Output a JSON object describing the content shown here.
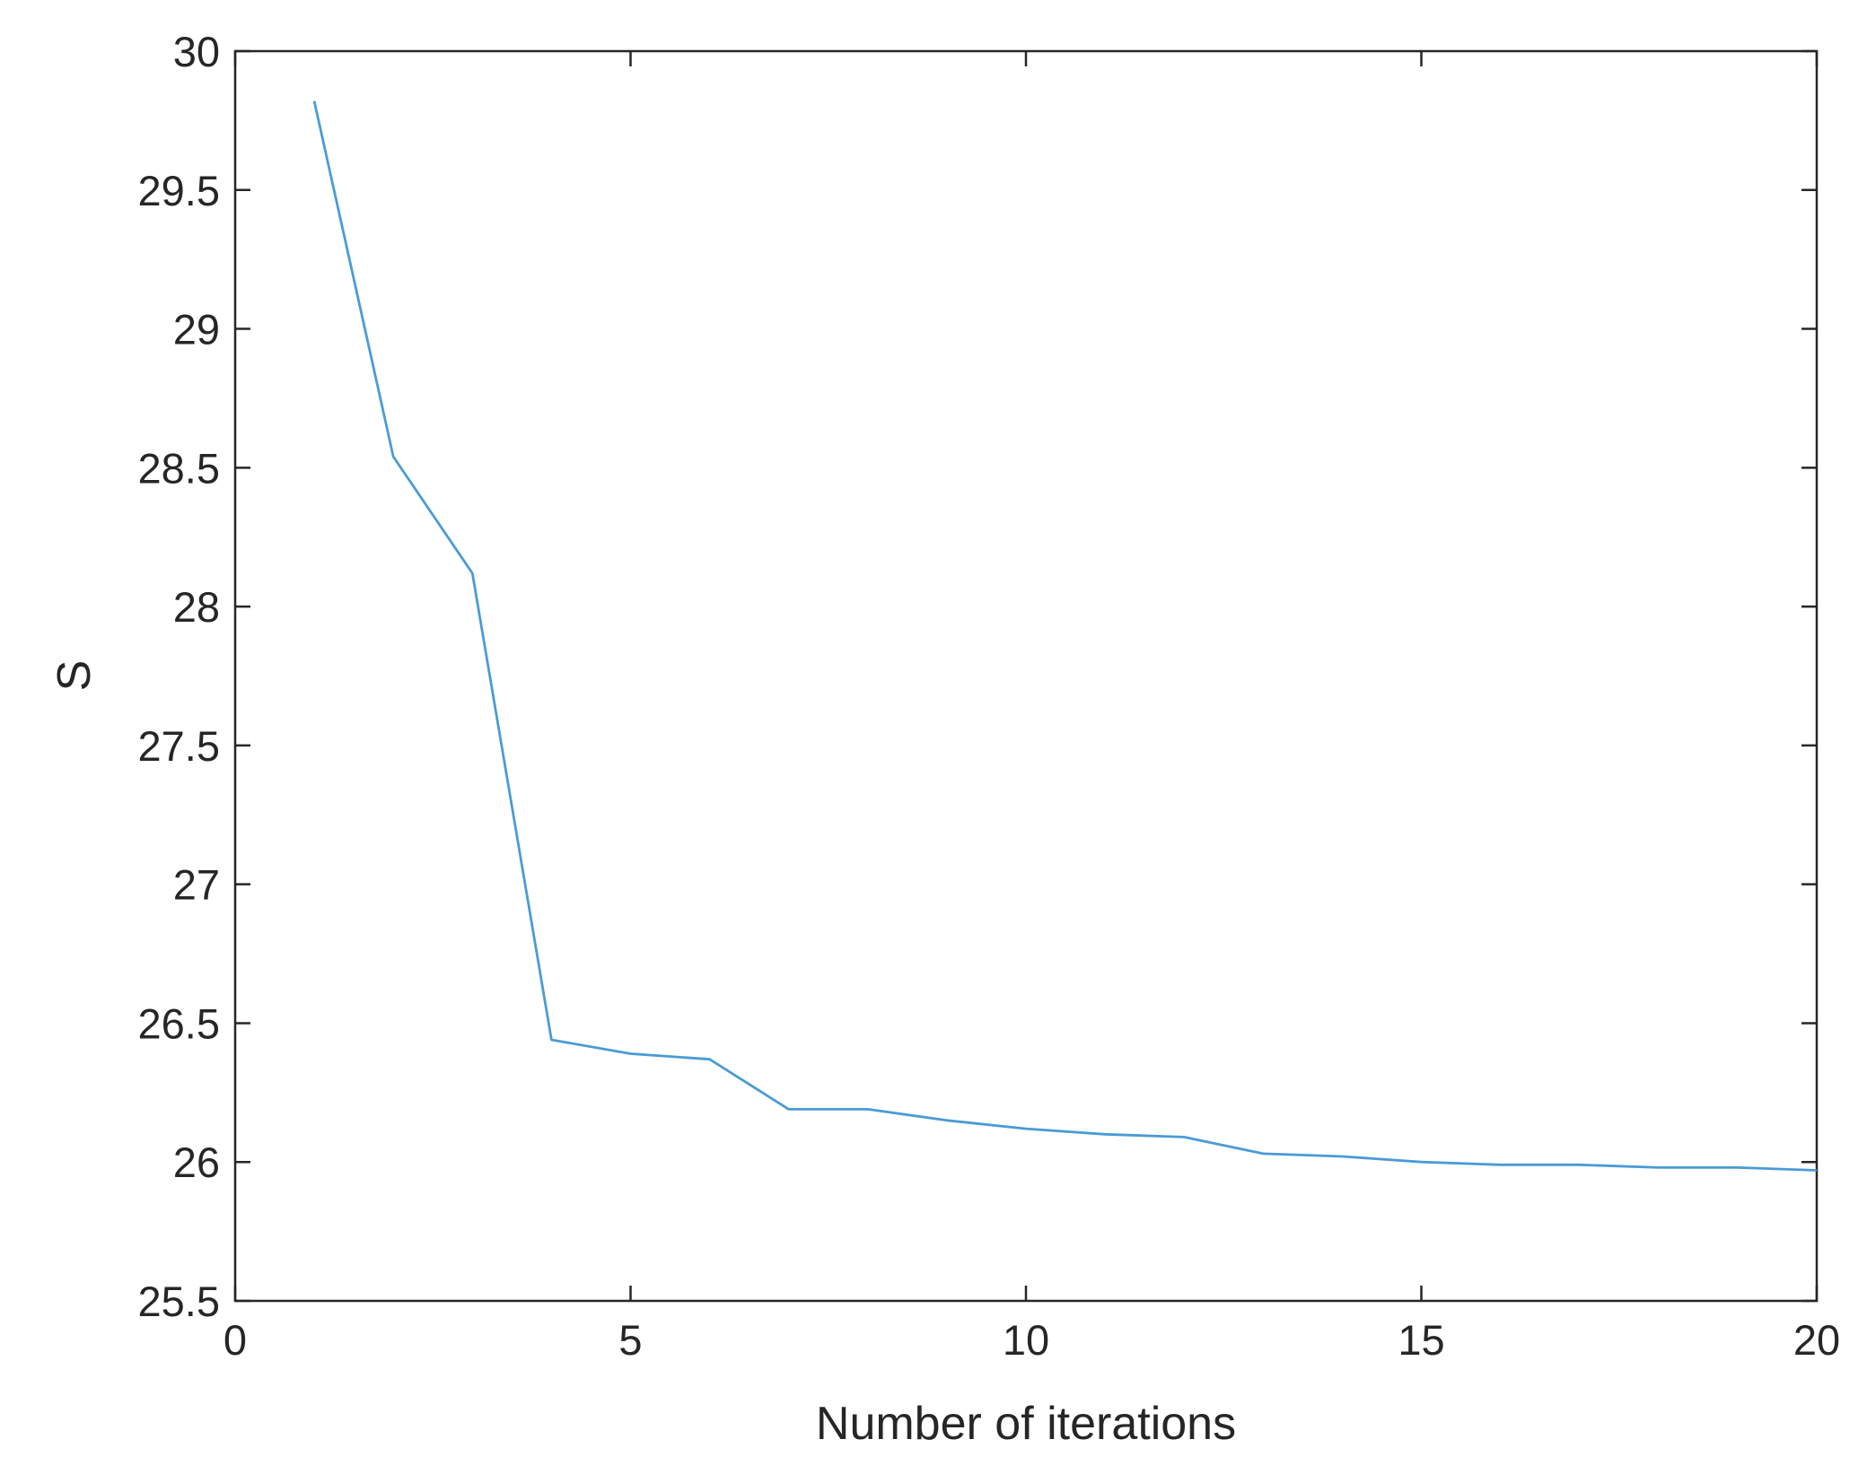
{
  "chart_data": {
    "type": "line",
    "title": "",
    "xlabel": "Number of iterations",
    "ylabel": "S",
    "xlim": [
      0,
      20
    ],
    "ylim": [
      25.5,
      30
    ],
    "x_ticks": [
      "0",
      "5",
      "10",
      "15",
      "20"
    ],
    "y_ticks": [
      "25.5",
      "26",
      "26.5",
      "27",
      "27.5",
      "28",
      "28.5",
      "29",
      "29.5",
      "30"
    ],
    "grid": false,
    "legend": "none",
    "box": true,
    "series": [
      {
        "color": "#4a9bd6",
        "x": [
          1,
          2,
          3,
          4,
          5,
          6,
          7,
          8,
          9,
          10,
          11,
          12,
          13,
          14,
          15,
          16,
          17,
          18,
          19,
          20
        ],
        "values": [
          29.82,
          28.54,
          28.12,
          26.44,
          26.39,
          26.37,
          26.19,
          26.19,
          26.15,
          26.12,
          26.1,
          26.09,
          26.03,
          26.02,
          26.0,
          25.99,
          25.99,
          25.98,
          25.98,
          25.97
        ]
      }
    ]
  }
}
